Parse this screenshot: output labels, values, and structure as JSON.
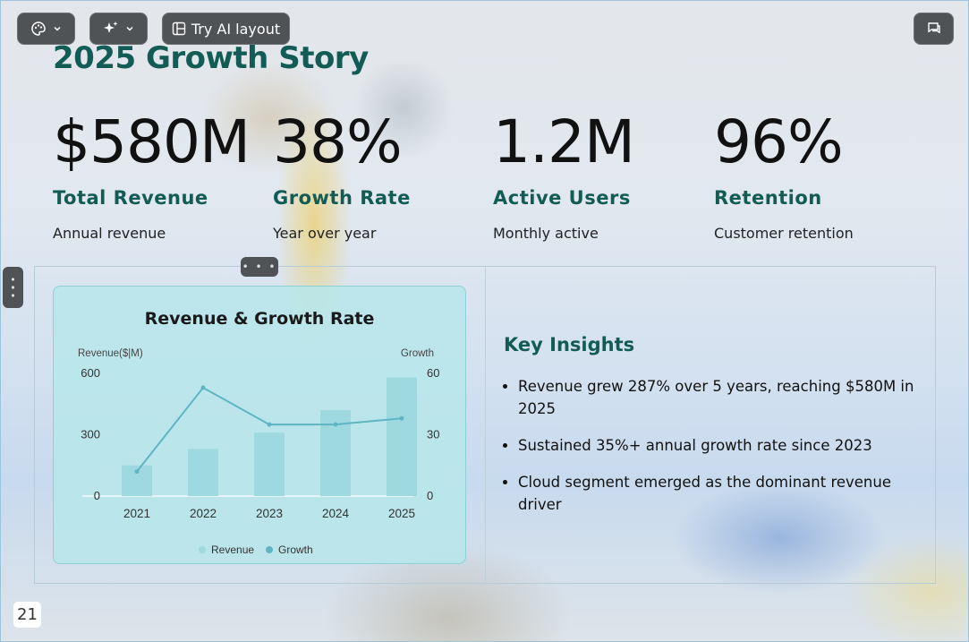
{
  "toolbar": {
    "theme_icon": "palette-icon",
    "ai_icon": "sparkles-icon",
    "layout_label": "Try AI layout",
    "comments_icon": "comment-icon"
  },
  "slide": {
    "title": "2025 Growth Story",
    "stats": [
      {
        "value": "$580M",
        "label": "Total Revenue",
        "sub": "Annual revenue"
      },
      {
        "value": "38%",
        "label": "Growth Rate",
        "sub": "Year over year"
      },
      {
        "value": "1.2M",
        "label": "Active Users",
        "sub": "Monthly active"
      },
      {
        "value": "96%",
        "label": "Retention",
        "sub": "Customer retention"
      }
    ],
    "insights": {
      "title": "Key Insights",
      "items": [
        "Revenue grew 287% over 5 years, reaching $580M in 2025",
        "Sustained 35%+ annual growth rate since 2023",
        "Cloud segment emerged as the dominant revenue driver"
      ]
    },
    "page_number": "21"
  },
  "chart_data": {
    "type": "bar",
    "title": "Revenue & Growth Rate",
    "categories": [
      "2021",
      "2022",
      "2023",
      "2024",
      "2025"
    ],
    "series": [
      {
        "name": "Revenue",
        "type": "bar",
        "axis": "left",
        "values": [
          150,
          230,
          310,
          420,
          580
        ],
        "color": "#9fd9e0"
      },
      {
        "name": "Growth",
        "type": "line",
        "axis": "right",
        "values": [
          12,
          53,
          35,
          35,
          38
        ],
        "color": "#5fb5c2"
      }
    ],
    "ylabel": "Revenue($|M)",
    "ylabel_right": "Growth",
    "ylim": [
      0,
      600
    ],
    "ylim_right": [
      0,
      60
    ],
    "yticks": [
      "0",
      "300",
      "600"
    ],
    "yticks_right": [
      "0",
      "30",
      "60"
    ],
    "legend": "bottom-center",
    "grid": false
  }
}
